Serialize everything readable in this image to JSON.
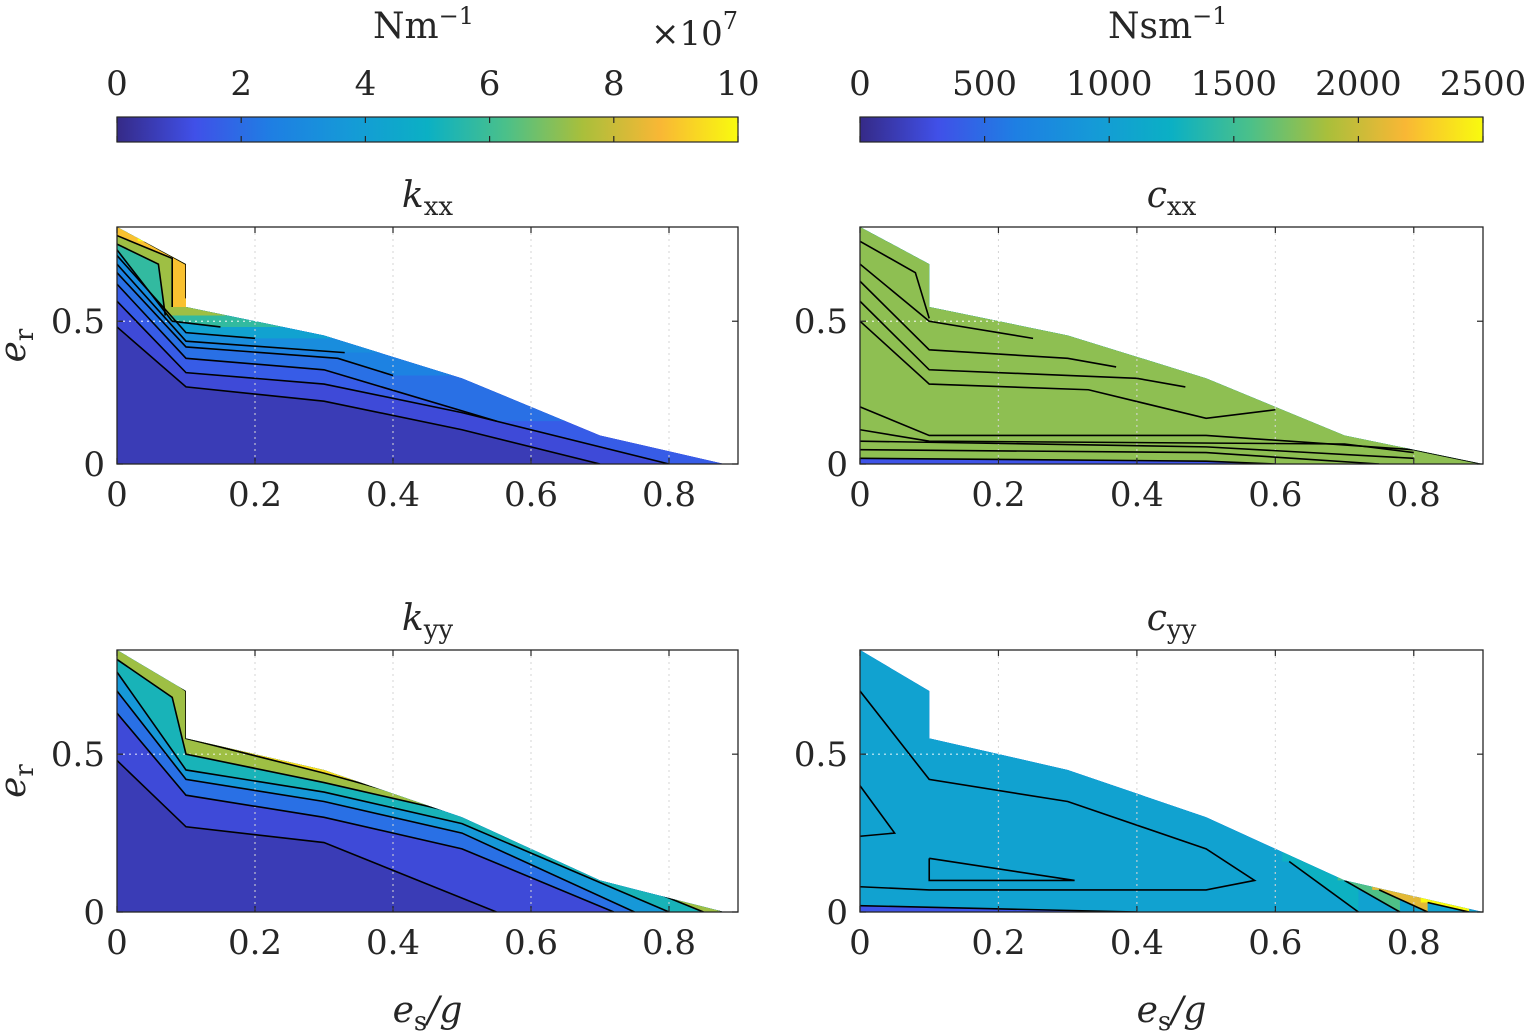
{
  "figure": {
    "x_axis_label": {
      "symbol": "e",
      "sub": "s",
      "rest": "/g"
    },
    "y_axis_label": {
      "symbol": "e",
      "sub": "r"
    },
    "colorbars": [
      {
        "unit": "Nm",
        "unit_sup": "−1",
        "multiplier": "×10",
        "multiplier_exp": "7",
        "range": [
          0,
          10
        ],
        "ticks": [
          "0",
          "2",
          "4",
          "6",
          "8",
          "10"
        ]
      },
      {
        "unit": "Nsm",
        "unit_sup": "−1",
        "multiplier": "",
        "multiplier_exp": "",
        "range": [
          0,
          2500
        ],
        "ticks": [
          "0",
          "500",
          "1000",
          "1500",
          "2000",
          "2500"
        ]
      }
    ]
  },
  "chart_data": [
    {
      "type": "heatmap",
      "subtype": "filled-contour",
      "title_symbol": "k",
      "title_sub": "xx",
      "xlabel": "e_s/g",
      "ylabel": "e_r",
      "xlim": [
        0,
        0.9
      ],
      "ylim": [
        0,
        0.83
      ],
      "xticks": [
        "0",
        "0.2",
        "0.4",
        "0.6",
        "0.8"
      ],
      "yticks": [
        "0",
        "0.5"
      ],
      "grid": true,
      "colorbar": 0,
      "domain_boundary": [
        [
          0,
          0.83
        ],
        [
          0.1,
          0.7
        ],
        [
          0.1,
          0.55
        ],
        [
          0.3,
          0.45
        ],
        [
          0.5,
          0.3
        ],
        [
          0.7,
          0.1
        ],
        [
          0.88,
          0
        ]
      ],
      "contour_levels": [
        {
          "value": 1.0,
          "line": [
            [
              0,
              0.48
            ],
            [
              0.1,
              0.27
            ],
            [
              0.3,
              0.22
            ],
            [
              0.5,
              0.12
            ],
            [
              0.7,
              0.0
            ]
          ]
        },
        {
          "value": 1.5,
          "line": [
            [
              0,
              0.57
            ],
            [
              0.1,
              0.32
            ],
            [
              0.3,
              0.28
            ],
            [
              0.5,
              0.18
            ],
            [
              0.8,
              0.0
            ]
          ]
        },
        {
          "value": 2.0,
          "line": [
            [
              0,
              0.63
            ],
            [
              0.1,
              0.37
            ],
            [
              0.3,
              0.33
            ],
            [
              0.55,
              0.15
            ]
          ]
        },
        {
          "value": 2.5,
          "line": [
            [
              0,
              0.67
            ],
            [
              0.1,
              0.41
            ],
            [
              0.32,
              0.37
            ],
            [
              0.4,
              0.31
            ]
          ]
        },
        {
          "value": 3.0,
          "line": [
            [
              0,
              0.7
            ],
            [
              0.1,
              0.43
            ],
            [
              0.33,
              0.39
            ]
          ]
        },
        {
          "value": 4.0,
          "line": [
            [
              0,
              0.73
            ],
            [
              0.1,
              0.46
            ],
            [
              0.2,
              0.44
            ]
          ]
        },
        {
          "value": 5.5,
          "line": [
            [
              0,
              0.75
            ],
            [
              0.08,
              0.5
            ],
            [
              0.15,
              0.48
            ]
          ]
        },
        {
          "value": 7.0,
          "line": [
            [
              0,
              0.77
            ],
            [
              0.06,
              0.7
            ],
            [
              0.07,
              0.52
            ]
          ]
        },
        {
          "value": 8.5,
          "line": [
            [
              0,
              0.8
            ],
            [
              0.08,
              0.72
            ],
            [
              0.08,
              0.55
            ]
          ]
        },
        {
          "value": 9.5,
          "line": [
            [
              0.04,
              0.78
            ],
            [
              0.1,
              0.7
            ],
            [
              0.1,
              0.58
            ]
          ]
        }
      ]
    },
    {
      "type": "heatmap",
      "subtype": "filled-contour",
      "title_symbol": "c",
      "title_sub": "xx",
      "xlabel": "e_s/g",
      "ylabel": "e_r",
      "xlim": [
        0,
        0.9
      ],
      "ylim": [
        0,
        0.83
      ],
      "xticks": [
        "0",
        "0.2",
        "0.4",
        "0.6",
        "0.8"
      ],
      "yticks": [
        "0",
        "0.5"
      ],
      "grid": true,
      "colorbar": 1,
      "domain_boundary": [
        [
          0,
          0.83
        ],
        [
          0.1,
          0.7
        ],
        [
          0.1,
          0.55
        ],
        [
          0.3,
          0.45
        ],
        [
          0.5,
          0.3
        ],
        [
          0.7,
          0.1
        ],
        [
          0.9,
          0
        ]
      ],
      "contour_levels": [
        {
          "value": 550,
          "line": [
            [
              0,
              0.2
            ],
            [
              0.1,
              0.1
            ],
            [
              0.5,
              0.1
            ],
            [
              0.8,
              0.05
            ],
            [
              0.9,
              0.0
            ]
          ]
        },
        {
          "value": 600,
          "line": [
            [
              0,
              0.5
            ],
            [
              0.1,
              0.28
            ],
            [
              0.33,
              0.26
            ],
            [
              0.5,
              0.16
            ],
            [
              0.6,
              0.19
            ]
          ]
        },
        {
          "value": 700,
          "line": [
            [
              0,
              0.57
            ],
            [
              0.1,
              0.33
            ],
            [
              0.4,
              0.3
            ],
            [
              0.47,
              0.27
            ]
          ]
        },
        {
          "value": 800,
          "line": [
            [
              0,
              0.64
            ],
            [
              0.1,
              0.4
            ],
            [
              0.3,
              0.37
            ],
            [
              0.37,
              0.34
            ]
          ]
        },
        {
          "value": 900,
          "line": [
            [
              0,
              0.7
            ],
            [
              0.1,
              0.5
            ],
            [
              0.25,
              0.44
            ]
          ]
        },
        {
          "value": 1000,
          "line": [
            [
              0,
              0.78
            ],
            [
              0.08,
              0.67
            ],
            [
              0.1,
              0.51
            ]
          ]
        },
        {
          "value": 1100,
          "line": [
            [
              0,
              0.12
            ],
            [
              0.1,
              0.08
            ],
            [
              0.7,
              0.07
            ],
            [
              0.8,
              0.04
            ]
          ]
        },
        {
          "value": 1300,
          "line": [
            [
              0,
              0.08
            ],
            [
              0.5,
              0.06
            ],
            [
              0.8,
              0.02
            ]
          ]
        },
        {
          "value": 1500,
          "line": [
            [
              0,
              0.05
            ],
            [
              0.5,
              0.04
            ],
            [
              0.75,
              0.0
            ]
          ]
        },
        {
          "value": 1700,
          "line": [
            [
              0,
              0.02
            ],
            [
              0.5,
              0.01
            ],
            [
              0.6,
              0.0
            ]
          ]
        }
      ]
    },
    {
      "type": "heatmap",
      "subtype": "filled-contour",
      "title_symbol": "k",
      "title_sub": "yy",
      "xlabel": "e_s/g",
      "ylabel": "e_r",
      "xlim": [
        0,
        0.9
      ],
      "ylim": [
        0,
        0.83
      ],
      "xticks": [
        "0",
        "0.2",
        "0.4",
        "0.6",
        "0.8"
      ],
      "yticks": [
        "0",
        "0.5"
      ],
      "grid": true,
      "colorbar": 0,
      "domain_boundary": [
        [
          0,
          0.83
        ],
        [
          0.1,
          0.7
        ],
        [
          0.1,
          0.55
        ],
        [
          0.3,
          0.45
        ],
        [
          0.5,
          0.3
        ],
        [
          0.7,
          0.1
        ],
        [
          0.88,
          0
        ]
      ],
      "contour_levels": [
        {
          "value": 1.0,
          "line": [
            [
              0,
              0.48
            ],
            [
              0.1,
              0.27
            ],
            [
              0.3,
              0.22
            ],
            [
              0.55,
              0.0
            ]
          ]
        },
        {
          "value": 2.0,
          "line": [
            [
              0,
              0.63
            ],
            [
              0.1,
              0.37
            ],
            [
              0.3,
              0.3
            ],
            [
              0.5,
              0.2
            ],
            [
              0.72,
              0.0
            ]
          ]
        },
        {
          "value": 3.5,
          "line": [
            [
              0,
              0.7
            ],
            [
              0.1,
              0.42
            ],
            [
              0.3,
              0.35
            ],
            [
              0.5,
              0.25
            ],
            [
              0.75,
              0.0
            ]
          ]
        },
        {
          "value": 5.0,
          "line": [
            [
              0,
              0.76
            ],
            [
              0.1,
              0.45
            ],
            [
              0.3,
              0.38
            ],
            [
              0.5,
              0.28
            ],
            [
              0.8,
              0.0
            ]
          ]
        },
        {
          "value": 7.0,
          "line": [
            [
              0,
              0.8
            ],
            [
              0.08,
              0.68
            ],
            [
              0.1,
              0.5
            ],
            [
              0.3,
              0.41
            ],
            [
              0.5,
              0.31
            ],
            [
              0.85,
              0.0
            ]
          ]
        },
        {
          "value": 9.0,
          "line": [
            [
              0.04,
              0.8
            ],
            [
              0.1,
              0.7
            ],
            [
              0.1,
              0.55
            ],
            [
              0.3,
              0.44
            ],
            [
              0.5,
              0.32
            ],
            [
              0.88,
              0.0
            ]
          ]
        }
      ]
    },
    {
      "type": "heatmap",
      "subtype": "filled-contour",
      "title_symbol": "c",
      "title_sub": "yy",
      "xlabel": "e_s/g",
      "ylabel": "e_r",
      "xlim": [
        0,
        0.9
      ],
      "ylim": [
        0,
        0.83
      ],
      "xticks": [
        "0",
        "0.2",
        "0.4",
        "0.6",
        "0.8"
      ],
      "yticks": [
        "0",
        "0.5"
      ],
      "grid": true,
      "colorbar": 1,
      "domain_boundary": [
        [
          0,
          0.83
        ],
        [
          0.1,
          0.7
        ],
        [
          0.1,
          0.55
        ],
        [
          0.3,
          0.45
        ],
        [
          0.5,
          0.3
        ],
        [
          0.7,
          0.1
        ],
        [
          0.9,
          0
        ]
      ],
      "contour_levels": [
        {
          "value": 700,
          "line": [
            [
              0,
              0.7
            ],
            [
              0.1,
              0.42
            ],
            [
              0.3,
              0.35
            ],
            [
              0.5,
              0.2
            ],
            [
              0.57,
              0.1
            ],
            [
              0.5,
              0.07
            ],
            [
              0.1,
              0.07
            ],
            [
              0,
              0.08
            ]
          ]
        },
        {
          "value": 600,
          "line": [
            [
              0,
              0.4
            ],
            [
              0.05,
              0.25
            ],
            [
              0,
              0.24
            ]
          ]
        },
        {
          "value": 550,
          "line": [
            [
              0.1,
              0.17
            ],
            [
              0.31,
              0.1
            ],
            [
              0.1,
              0.1
            ],
            [
              0.1,
              0.17
            ]
          ]
        },
        {
          "value": 1200,
          "line": [
            [
              0.62,
              0.16
            ],
            [
              0.72,
              0.0
            ]
          ]
        },
        {
          "value": 1500,
          "line": [
            [
              0.7,
              0.1
            ],
            [
              0.78,
              0.0
            ]
          ]
        },
        {
          "value": 2000,
          "line": [
            [
              0.75,
              0.07
            ],
            [
              0.82,
              0.0
            ]
          ]
        },
        {
          "value": 2400,
          "line": [
            [
              0.82,
              0.03
            ],
            [
              0.88,
              0.0
            ]
          ]
        },
        {
          "value": 1000,
          "line": [
            [
              0,
              0.02
            ],
            [
              0.4,
              0.0
            ]
          ]
        }
      ]
    }
  ]
}
